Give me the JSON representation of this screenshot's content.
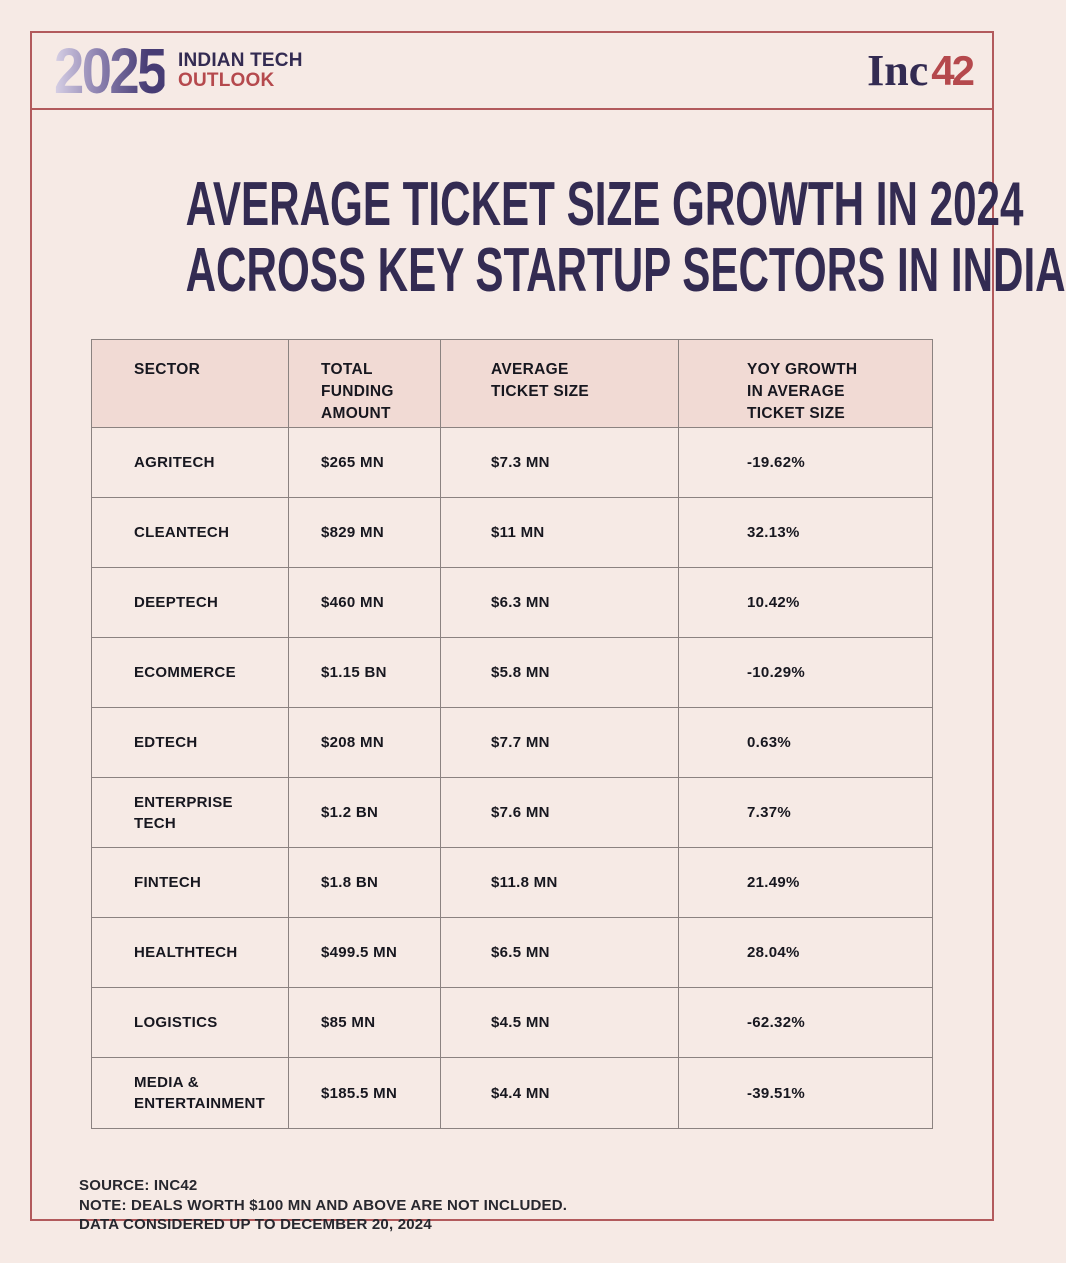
{
  "header": {
    "year": "2025",
    "brand_line1": "INDIAN TECH",
    "brand_line2": "OUTLOOK",
    "inc42_inc": "Inc",
    "inc42_42": "42"
  },
  "title": {
    "line1": "AVERAGE TICKET SIZE GROWTH IN 2024",
    "line2": "ACROSS KEY STARTUP SECTORS IN INDIA"
  },
  "chart_data": {
    "type": "table",
    "title": "AVERAGE TICKET SIZE GROWTH IN 2024 ACROSS KEY STARTUP SECTORS IN INDIA",
    "columns": [
      "SECTOR",
      "TOTAL FUNDING AMOUNT",
      "AVERAGE TICKET SIZE",
      "YOY GROWTH IN AVERAGE TICKET SIZE"
    ],
    "rows": [
      [
        "AGRITECH",
        "$265 MN",
        "$7.3 MN",
        "-19.62%"
      ],
      [
        "CLEANTECH",
        "$829 MN",
        "$11 MN",
        "32.13%"
      ],
      [
        "DEEPTECH",
        "$460 MN",
        "$6.3 MN",
        "10.42%"
      ],
      [
        "ECOMMERCE",
        "$1.15 BN",
        "$5.8 MN",
        "-10.29%"
      ],
      [
        "EDTECH",
        "$208 MN",
        "$7.7 MN",
        "0.63%"
      ],
      [
        "ENTERPRISE TECH",
        "$1.2 BN",
        "$7.6 MN",
        "7.37%"
      ],
      [
        "FINTECH",
        "$1.8 BN",
        "$11.8 MN",
        "21.49%"
      ],
      [
        "HEALTHTECH",
        "$499.5 MN",
        "$6.5 MN",
        "28.04%"
      ],
      [
        "LOGISTICS",
        "$85 MN",
        "$4.5 MN",
        "-62.32%"
      ],
      [
        "MEDIA & ENTERTAINMENT",
        "$185.5 MN",
        "$4.4 MN",
        "-39.51%"
      ]
    ],
    "yoy_growth_numeric": [
      -19.62,
      32.13,
      10.42,
      -10.29,
      0.63,
      7.37,
      21.49,
      28.04,
      -62.32,
      -39.51
    ]
  },
  "footer": {
    "source": "SOURCE: INC42",
    "note": "NOTE: DEALS WORTH $100 MN AND ABOVE ARE NOT INCLUDED.",
    "data_note": "DATA CONSIDERED UP TO DECEMBER 20, 2024"
  },
  "colors": {
    "background": "#f6eae5",
    "frame_border": "#b25a5c",
    "navy": "#332b52",
    "red": "#b5494d",
    "header_row_bg": "#f1dad4",
    "grid_line": "#8b8280",
    "year_gradient_start": "#d8d1e6",
    "year_gradient_end": "#473c74"
  }
}
